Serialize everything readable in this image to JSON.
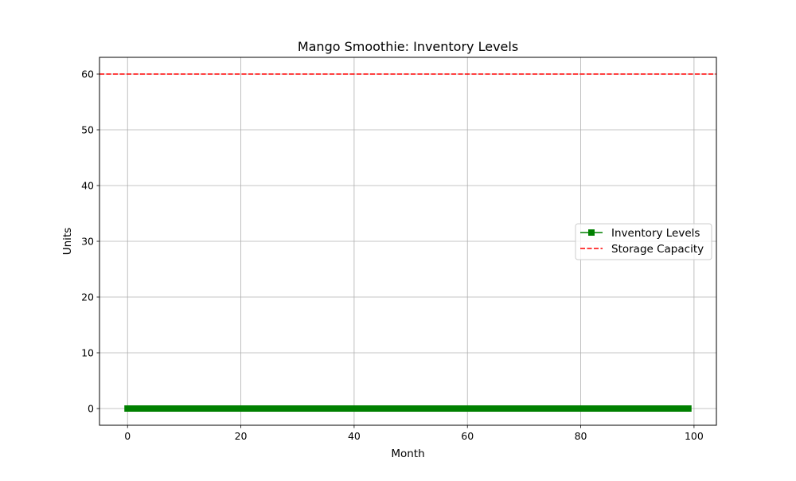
{
  "chart_data": {
    "type": "line",
    "title": "Mango Smoothie: Inventory Levels",
    "xlabel": "Month",
    "ylabel": "Units",
    "xlim": [
      -4.95,
      103.95
    ],
    "ylim": [
      -3,
      63
    ],
    "xticks": [
      0,
      20,
      40,
      60,
      80,
      100
    ],
    "yticks": [
      0,
      10,
      20,
      30,
      40,
      50,
      60
    ],
    "grid": true,
    "legend_position": "center-right",
    "series": [
      {
        "name": "Inventory Levels",
        "style": "solid line with square markers",
        "color": "#008000",
        "x_start": 0,
        "x_end": 99,
        "x_step": 1,
        "y_constant": 0
      }
    ],
    "reference_lines": [
      {
        "name": "Storage Capacity",
        "orientation": "horizontal",
        "y": 60,
        "style": "dashed",
        "color": "#ff0000"
      }
    ]
  }
}
